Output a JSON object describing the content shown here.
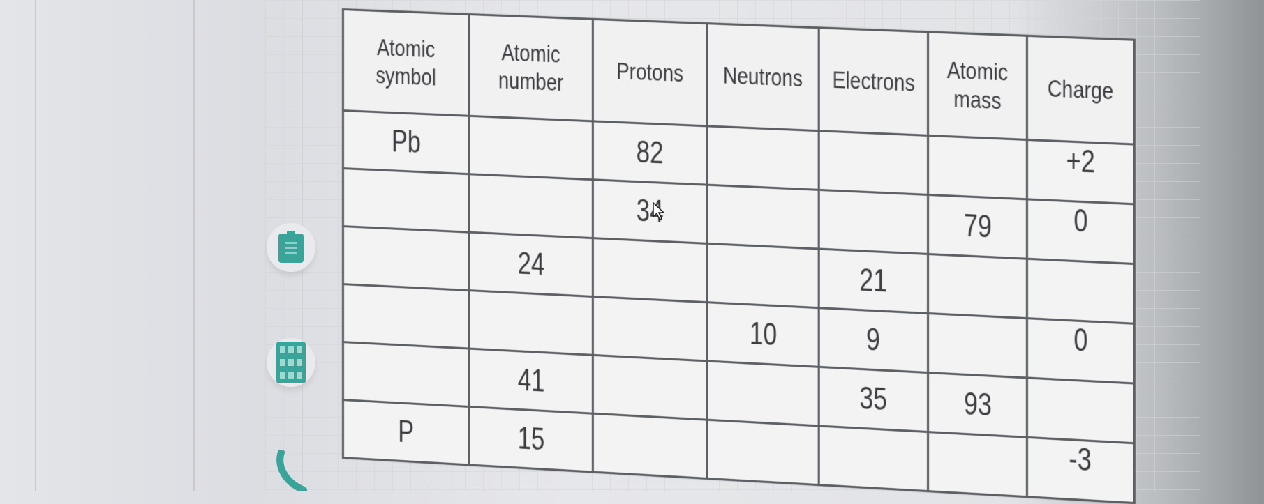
{
  "sidebar": {
    "tools": [
      {
        "icon": "clipboard-icon"
      },
      {
        "icon": "table-grid-icon"
      },
      {
        "icon": "phone-icon"
      }
    ]
  },
  "accent_color": "#3aa39a",
  "table": {
    "headers": [
      "Atomic symbol",
      "Atomic number",
      "Protons",
      "Neutrons",
      "Electrons",
      "Atomic mass",
      "Charge"
    ],
    "rows": [
      [
        "Pb",
        "",
        "82",
        "",
        "",
        "",
        "+2"
      ],
      [
        "",
        "",
        "34",
        "",
        "",
        "79",
        "0"
      ],
      [
        "",
        "24",
        "",
        "",
        "21",
        "",
        ""
      ],
      [
        "",
        "",
        "",
        "10",
        "9",
        "",
        "0"
      ],
      [
        "",
        "41",
        "",
        "",
        "35",
        "93",
        ""
      ],
      [
        "P",
        "15",
        "",
        "",
        "",
        "",
        "-3"
      ]
    ]
  }
}
